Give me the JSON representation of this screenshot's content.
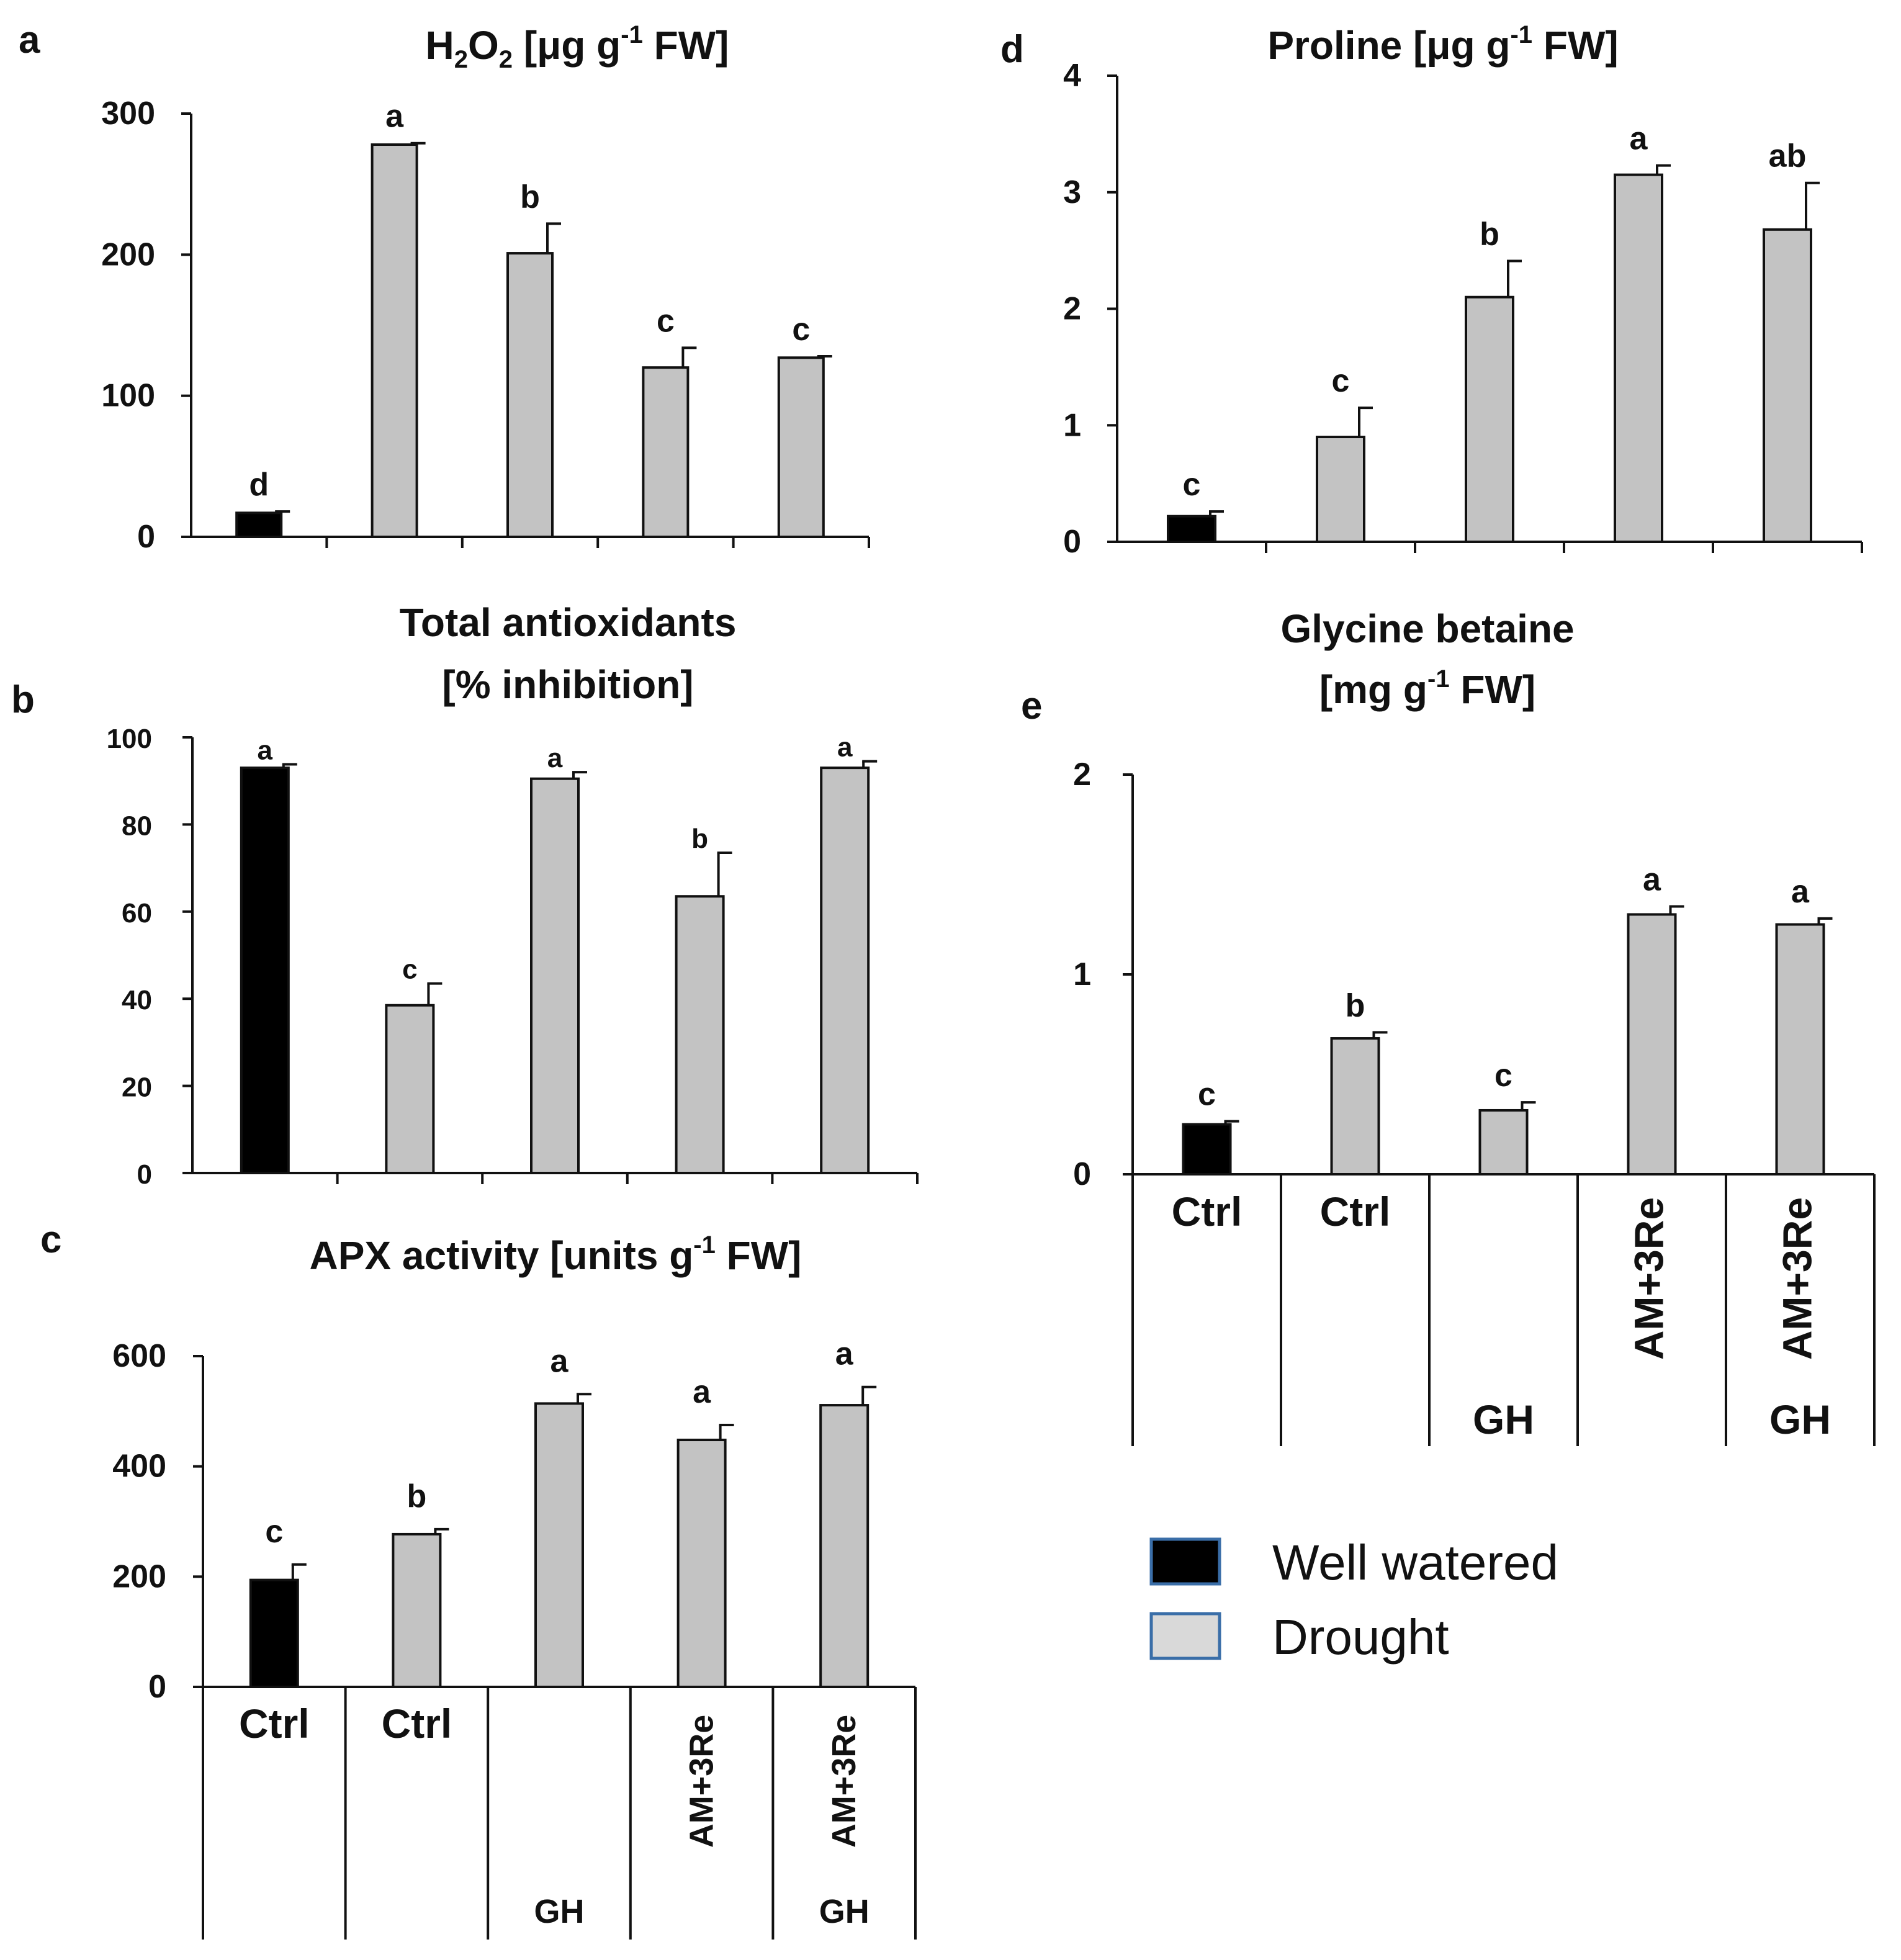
{
  "colors": {
    "well_watered": "#000000",
    "drought": "#c3c3c3",
    "axis": "#111111",
    "legend_edge": "#3a6ea8"
  },
  "categories": {
    "row1": [
      "Ctrl",
      "Ctrl",
      "",
      "AM+3Re",
      "AM+3Re"
    ],
    "row2": [
      "",
      "",
      "GH",
      "",
      "GH"
    ]
  },
  "legend": {
    "items": [
      {
        "label": "Well watered",
        "color": "#000000"
      },
      {
        "label": "Drought",
        "color": "#d9d9d9"
      }
    ]
  },
  "chart_data": [
    {
      "panel": "a",
      "type": "bar",
      "title_main": "H",
      "title_sub2": "2",
      "title_o": "O",
      "title_sub2b": "2",
      "title_unit": " [μg g",
      "title_sup": "-1",
      "title_end": " FW]",
      "yticks": [
        "0",
        "100",
        "200",
        "300"
      ],
      "ylim": [
        0,
        300
      ],
      "values": [
        17,
        278,
        201,
        120,
        127
      ],
      "errors": [
        1,
        1,
        21,
        14,
        1
      ],
      "letters": [
        "d",
        "a",
        "b",
        "c",
        "c"
      ],
      "series": [
        "Well watered",
        "Drought",
        "Drought",
        "Drought",
        "Drought"
      ]
    },
    {
      "panel": "b",
      "type": "bar",
      "title_line1": "Total antioxidants",
      "title_line2": "[% inhibition]",
      "yticks": [
        "0",
        "20",
        "40",
        "60",
        "80",
        "100"
      ],
      "ylim": [
        0,
        100
      ],
      "values": [
        93,
        38.5,
        90.5,
        63.5,
        93
      ],
      "errors": [
        0.8,
        5,
        1.5,
        10,
        1.5
      ],
      "letters": [
        "a",
        "c",
        "a",
        "b",
        "a"
      ],
      "series": [
        "Well watered",
        "Drought",
        "Drought",
        "Drought",
        "Drought"
      ]
    },
    {
      "panel": "c",
      "type": "bar",
      "title_unit": "APX activity [units g",
      "title_sup": "-1",
      "title_end": " FW]",
      "yticks": [
        "0",
        "200",
        "400",
        "600"
      ],
      "ylim": [
        0,
        600
      ],
      "values": [
        194,
        277,
        514,
        448,
        511
      ],
      "errors": [
        28,
        9,
        17,
        27,
        33
      ],
      "letters": [
        "c",
        "b",
        "a",
        "a",
        "a"
      ],
      "series": [
        "Well watered",
        "Drought",
        "Drought",
        "Drought",
        "Drought"
      ]
    },
    {
      "panel": "d",
      "type": "bar",
      "title_unit": "Proline [μg g",
      "title_sup": "-1",
      "title_end": " FW]",
      "yticks": [
        "0",
        "1",
        "2",
        "3",
        "4"
      ],
      "ylim": [
        0,
        4
      ],
      "values": [
        0.22,
        0.9,
        2.1,
        3.15,
        2.68
      ],
      "errors": [
        0.04,
        0.25,
        0.31,
        0.08,
        0.4
      ],
      "letters": [
        "c",
        "c",
        "b",
        "a",
        "ab"
      ],
      "series": [
        "Well watered",
        "Drought",
        "Drought",
        "Drought",
        "Drought"
      ]
    },
    {
      "panel": "e",
      "type": "bar",
      "title_line1": "Glycine betaine",
      "title_unit": "[mg g",
      "title_sup": "-1",
      "title_end": " FW]",
      "yticks": [
        "0",
        "1",
        "2"
      ],
      "ylim": [
        0,
        2
      ],
      "values": [
        0.25,
        0.68,
        0.32,
        1.3,
        1.25
      ],
      "errors": [
        0.015,
        0.03,
        0.04,
        0.04,
        0.03
      ],
      "letters": [
        "c",
        "b",
        "c",
        "a",
        "a"
      ],
      "series": [
        "Well watered",
        "Drought",
        "Drought",
        "Drought",
        "Drought"
      ]
    }
  ]
}
